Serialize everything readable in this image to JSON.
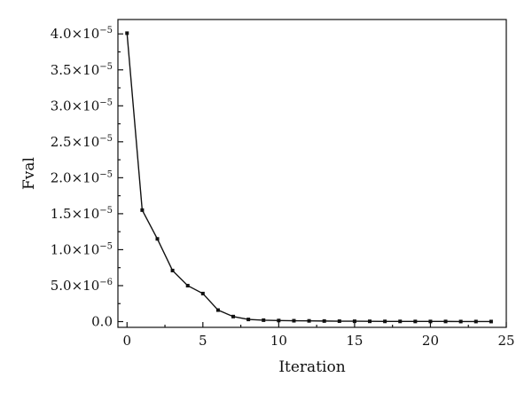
{
  "chart_data": {
    "type": "line",
    "title": "",
    "xlabel": "Iteration",
    "ylabel": "Fval",
    "xlim": [
      -0.6,
      25
    ],
    "ylim": [
      -8e-07,
      4.2e-05
    ],
    "x_ticks": [
      0,
      5,
      10,
      15,
      20,
      25
    ],
    "x_tick_labels": [
      "0",
      "5",
      "10",
      "15",
      "20",
      "25"
    ],
    "y_ticks": [
      0,
      5e-06,
      1e-05,
      1.5e-05,
      2e-05,
      2.5e-05,
      3e-05,
      3.5e-05,
      4e-05
    ],
    "y_tick_labels": [
      {
        "mantissa": "0.0",
        "exp": ""
      },
      {
        "mantissa": "5.0×10",
        "exp": "−6"
      },
      {
        "mantissa": "1.0×10",
        "exp": "−5"
      },
      {
        "mantissa": "1.5×10",
        "exp": "−5"
      },
      {
        "mantissa": "2.0×10",
        "exp": "−5"
      },
      {
        "mantissa": "2.5×10",
        "exp": "−5"
      },
      {
        "mantissa": "3.0×10",
        "exp": "−5"
      },
      {
        "mantissa": "3.5×10",
        "exp": "−5"
      },
      {
        "mantissa": "4.0×10",
        "exp": "−5"
      }
    ],
    "grid": false,
    "legend": "none",
    "series": [
      {
        "x": [
          0,
          1,
          2,
          3,
          4,
          5,
          6,
          7,
          8,
          9,
          10,
          11,
          12,
          13,
          14,
          15,
          16,
          17,
          18,
          19,
          20,
          21,
          22,
          23,
          24
        ],
        "y": [
          4.01e-05,
          1.55e-05,
          1.15e-05,
          7.1e-06,
          5e-06,
          3.9e-06,
          1.6e-06,
          7e-07,
          3e-07,
          2e-07,
          1.5e-07,
          1.2e-07,
          1e-07,
          8e-08,
          6e-08,
          5e-08,
          4e-08,
          3e-08,
          3e-08,
          2e-08,
          2e-08,
          2e-08,
          1e-08,
          1e-08,
          1e-08
        ]
      }
    ]
  }
}
